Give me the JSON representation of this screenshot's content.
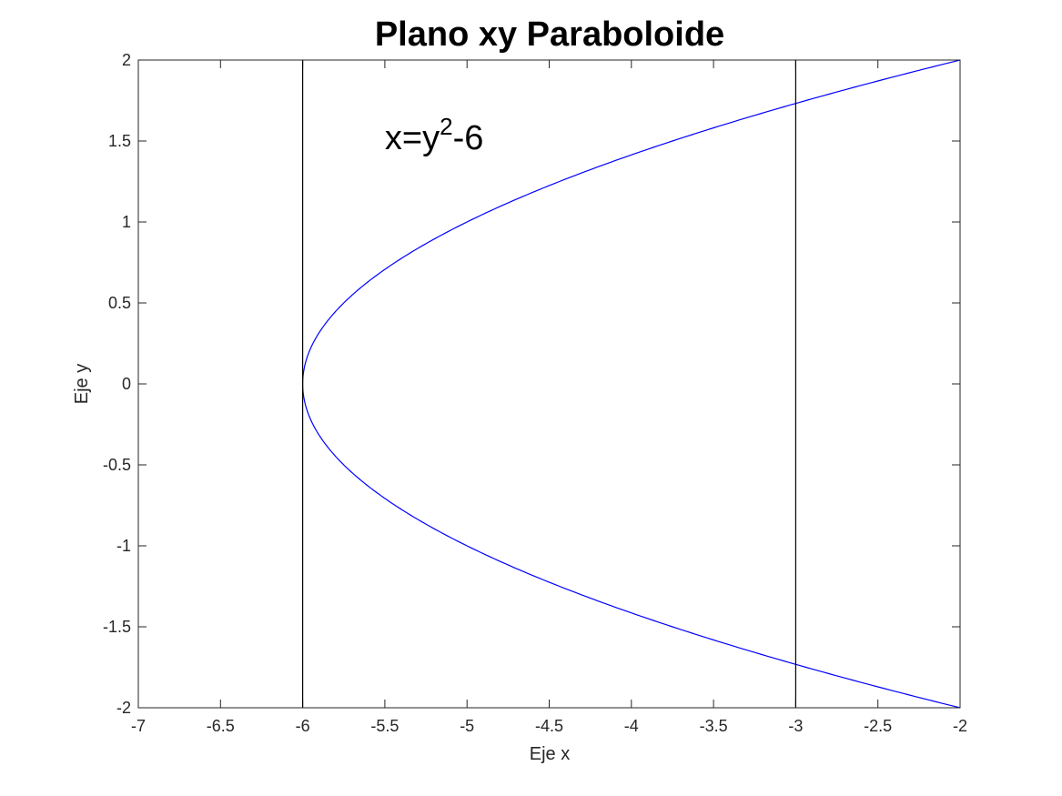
{
  "chart_data": {
    "type": "line",
    "title": "Plano xy Paraboloide",
    "xlabel": "Eje x",
    "ylabel": "Eje y",
    "xlim": [
      -7,
      -2
    ],
    "ylim": [
      -2,
      2
    ],
    "xticks": [
      -7,
      -6.5,
      -6,
      -5.5,
      -5,
      -4.5,
      -4,
      -3.5,
      -3,
      -2.5,
      -2
    ],
    "yticks": [
      -2,
      -1.5,
      -1,
      -0.5,
      0,
      0.5,
      1,
      1.5,
      2
    ],
    "xtick_labels": [
      "-7",
      "-6.5",
      "-6",
      "-5.5",
      "-5",
      "-4.5",
      "-4",
      "-3.5",
      "-3",
      "-2.5",
      "-2"
    ],
    "ytick_labels": [
      "-2",
      "-1.5",
      "-1",
      "-0.5",
      "0",
      "0.5",
      "1",
      "1.5",
      "2"
    ],
    "grid": false,
    "series": [
      {
        "equation": "x = y^2 - 6",
        "y_range": [
          -2,
          2
        ],
        "color": "#0000ff"
      },
      {
        "equation": "x = -6",
        "color": "#000000"
      },
      {
        "equation": "x = -3",
        "color": "#000000"
      }
    ],
    "annotation": {
      "prefix": "x=y",
      "sup": "2",
      "suffix": "-6",
      "x": -5.5,
      "y": 1.45
    }
  }
}
